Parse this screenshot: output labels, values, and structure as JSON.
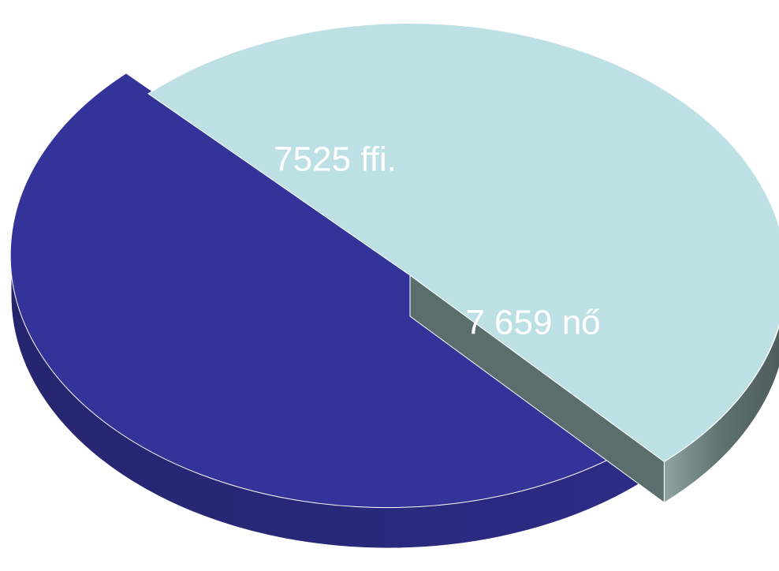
{
  "chart_data": {
    "type": "pie",
    "style": "3d-exploded",
    "series": [
      {
        "values": [
          7525,
          7659
        ],
        "labels": [
          "7525 ffi.",
          "7 659 nő"
        ],
        "colors": [
          "#333399",
          "#bce0e4"
        ]
      }
    ],
    "title": "",
    "legend": "none"
  }
}
